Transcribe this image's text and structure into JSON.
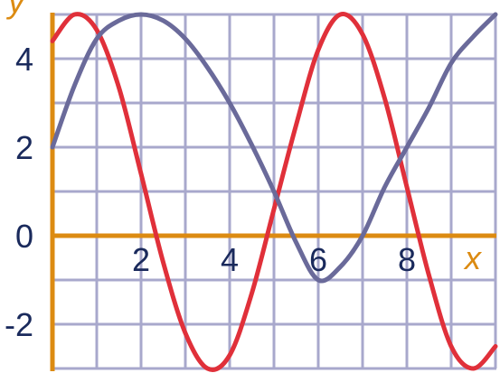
{
  "chart_data": {
    "type": "line",
    "xlabel": "x",
    "ylabel": "y",
    "xlim": [
      0,
      10
    ],
    "ylim": [
      -3,
      5
    ],
    "grid": true,
    "x_ticks": [
      2,
      4,
      6,
      8
    ],
    "x_tick_labels": [
      "2",
      "4",
      "6",
      "8"
    ],
    "y_ticks": [
      -2,
      0,
      2,
      4
    ],
    "y_tick_labels": [
      "-2",
      "0",
      "2",
      "4"
    ],
    "colors": {
      "axis": "#dc8b12",
      "grid": "#a8a8cc",
      "tick_text": "#1a2a5c",
      "red_series": "#e0303a",
      "purple_series": "#6a6a9a"
    },
    "series": [
      {
        "color": "#e0303a",
        "x": [
          0,
          0.5,
          1,
          1.5,
          2,
          2.5,
          3,
          3.5,
          4,
          4.5,
          5,
          5.5,
          6,
          6.5,
          7,
          7.5,
          8,
          8.5,
          9,
          9.5,
          10
        ],
        "y": [
          4.4,
          5.0,
          4.65,
          3.35,
          1.4,
          -0.6,
          -2.2,
          -3.0,
          -2.7,
          -1.3,
          0.6,
          2.5,
          4.2,
          5.0,
          4.55,
          3.1,
          1.1,
          -0.9,
          -2.5,
          -3.0,
          -2.5
        ]
      },
      {
        "color": "#6a6a9a",
        "x": [
          0,
          0.5,
          1,
          1.5,
          2,
          2.5,
          3,
          3.5,
          4,
          4.5,
          5,
          5.5,
          6,
          6.5,
          7,
          7.5,
          8,
          8.5,
          9,
          9.5,
          10
        ],
        "y": [
          2.0,
          3.4,
          4.45,
          4.86,
          5.0,
          4.86,
          4.45,
          3.8,
          3.0,
          2.05,
          1.0,
          -0.15,
          -1.0,
          -0.7,
          0.0,
          1.1,
          2.0,
          2.9,
          3.9,
          4.5,
          5.0
        ]
      }
    ]
  }
}
